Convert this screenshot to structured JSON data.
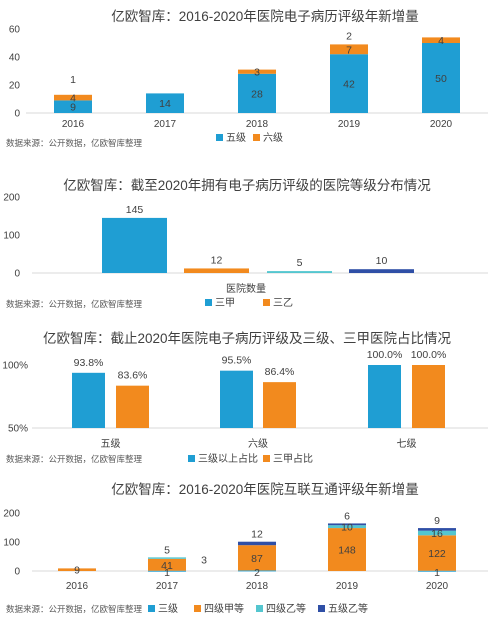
{
  "colors": {
    "blue": "#1f9ed3",
    "orange": "#f28a1e",
    "teal": "#54c6cf",
    "navy": "#2f4fa6"
  },
  "chart_data": [
    {
      "type": "bar",
      "stacked": true,
      "title": "亿欧智库：2016-2020年医院电子病历评级年新增量",
      "categories": [
        "2016",
        "2017",
        "2018",
        "2019",
        "2020"
      ],
      "series": [
        {
          "name": "五级",
          "values": [
            9,
            14,
            28,
            42,
            50
          ]
        },
        {
          "name": "六级",
          "values": [
            4,
            null,
            3,
            7,
            4
          ]
        }
      ],
      "extra_labels": [
        {
          "category": "2016",
          "text": "1"
        },
        {
          "category": "2019",
          "text": "2"
        }
      ],
      "yticks": [
        "0",
        "20",
        "40",
        "60"
      ],
      "ylim": [
        0,
        60
      ],
      "legend": "bottom",
      "source": "数据来源：公开数据，亿欧智库整理"
    },
    {
      "type": "bar",
      "title": "亿欧智库：截至2020年拥有电子病历评级的医院等级分布情况",
      "xlabel": "医院数量",
      "series": [
        {
          "name": "三甲",
          "value": 145
        },
        {
          "name": "三乙",
          "value": 12
        },
        {
          "name": "",
          "value": 5
        },
        {
          "name": "",
          "value": 10
        }
      ],
      "yticks": [
        "0",
        "100",
        "200"
      ],
      "ylim": [
        0,
        200
      ],
      "legend": "bottom",
      "source": "数据来源：公开数据，亿欧智库整理"
    },
    {
      "type": "bar",
      "title": "亿欧智库：截止2020年医院电子病历评级及三级、三甲医院占比情况",
      "categories": [
        "五级",
        "六级",
        "七级"
      ],
      "series": [
        {
          "name": "三级以上占比",
          "values": [
            93.8,
            95.5,
            100.0
          ],
          "labels": [
            "93.8%",
            "95.5%",
            "100.0%"
          ]
        },
        {
          "name": "三甲占比",
          "values": [
            83.6,
            86.4,
            100.0
          ],
          "labels": [
            "83.6%",
            "86.4%",
            "100.0%"
          ]
        }
      ],
      "yticks": [
        "50%",
        "100%"
      ],
      "ylim": [
        50,
        100
      ],
      "legend": "bottom",
      "source": "数据来源：公开数据，亿欧智库整理"
    },
    {
      "type": "bar",
      "stacked": true,
      "title": "亿欧智库：2016-2020年医院互联互通评级年新增量",
      "categories": [
        "2016",
        "2017",
        "2018",
        "2019",
        "2020"
      ],
      "series": [
        {
          "name": "三级",
          "values": [
            null,
            1,
            2,
            null,
            1
          ],
          "labels": [
            "",
            "1",
            "2",
            "",
            "1"
          ]
        },
        {
          "name": "四级甲等",
          "values": [
            9,
            41,
            87,
            148,
            122
          ],
          "labels": [
            "9",
            "41",
            "87",
            "148",
            "122"
          ]
        },
        {
          "name": "四级乙等",
          "values": [
            null,
            5,
            null,
            10,
            16
          ],
          "labels": [
            "",
            "5",
            "",
            "10",
            "16"
          ]
        },
        {
          "name": "五级乙等",
          "values": [
            null,
            null,
            12,
            6,
            9
          ],
          "labels": [
            "",
            "",
            "12",
            "6",
            "9"
          ]
        }
      ],
      "extra_labels": [
        {
          "category": "2017",
          "text": "3"
        }
      ],
      "yticks": [
        "0",
        "100",
        "200"
      ],
      "ylim": [
        0,
        200
      ],
      "legend": "bottom",
      "source": "数据来源：公开数据，亿欧智库整理"
    }
  ]
}
